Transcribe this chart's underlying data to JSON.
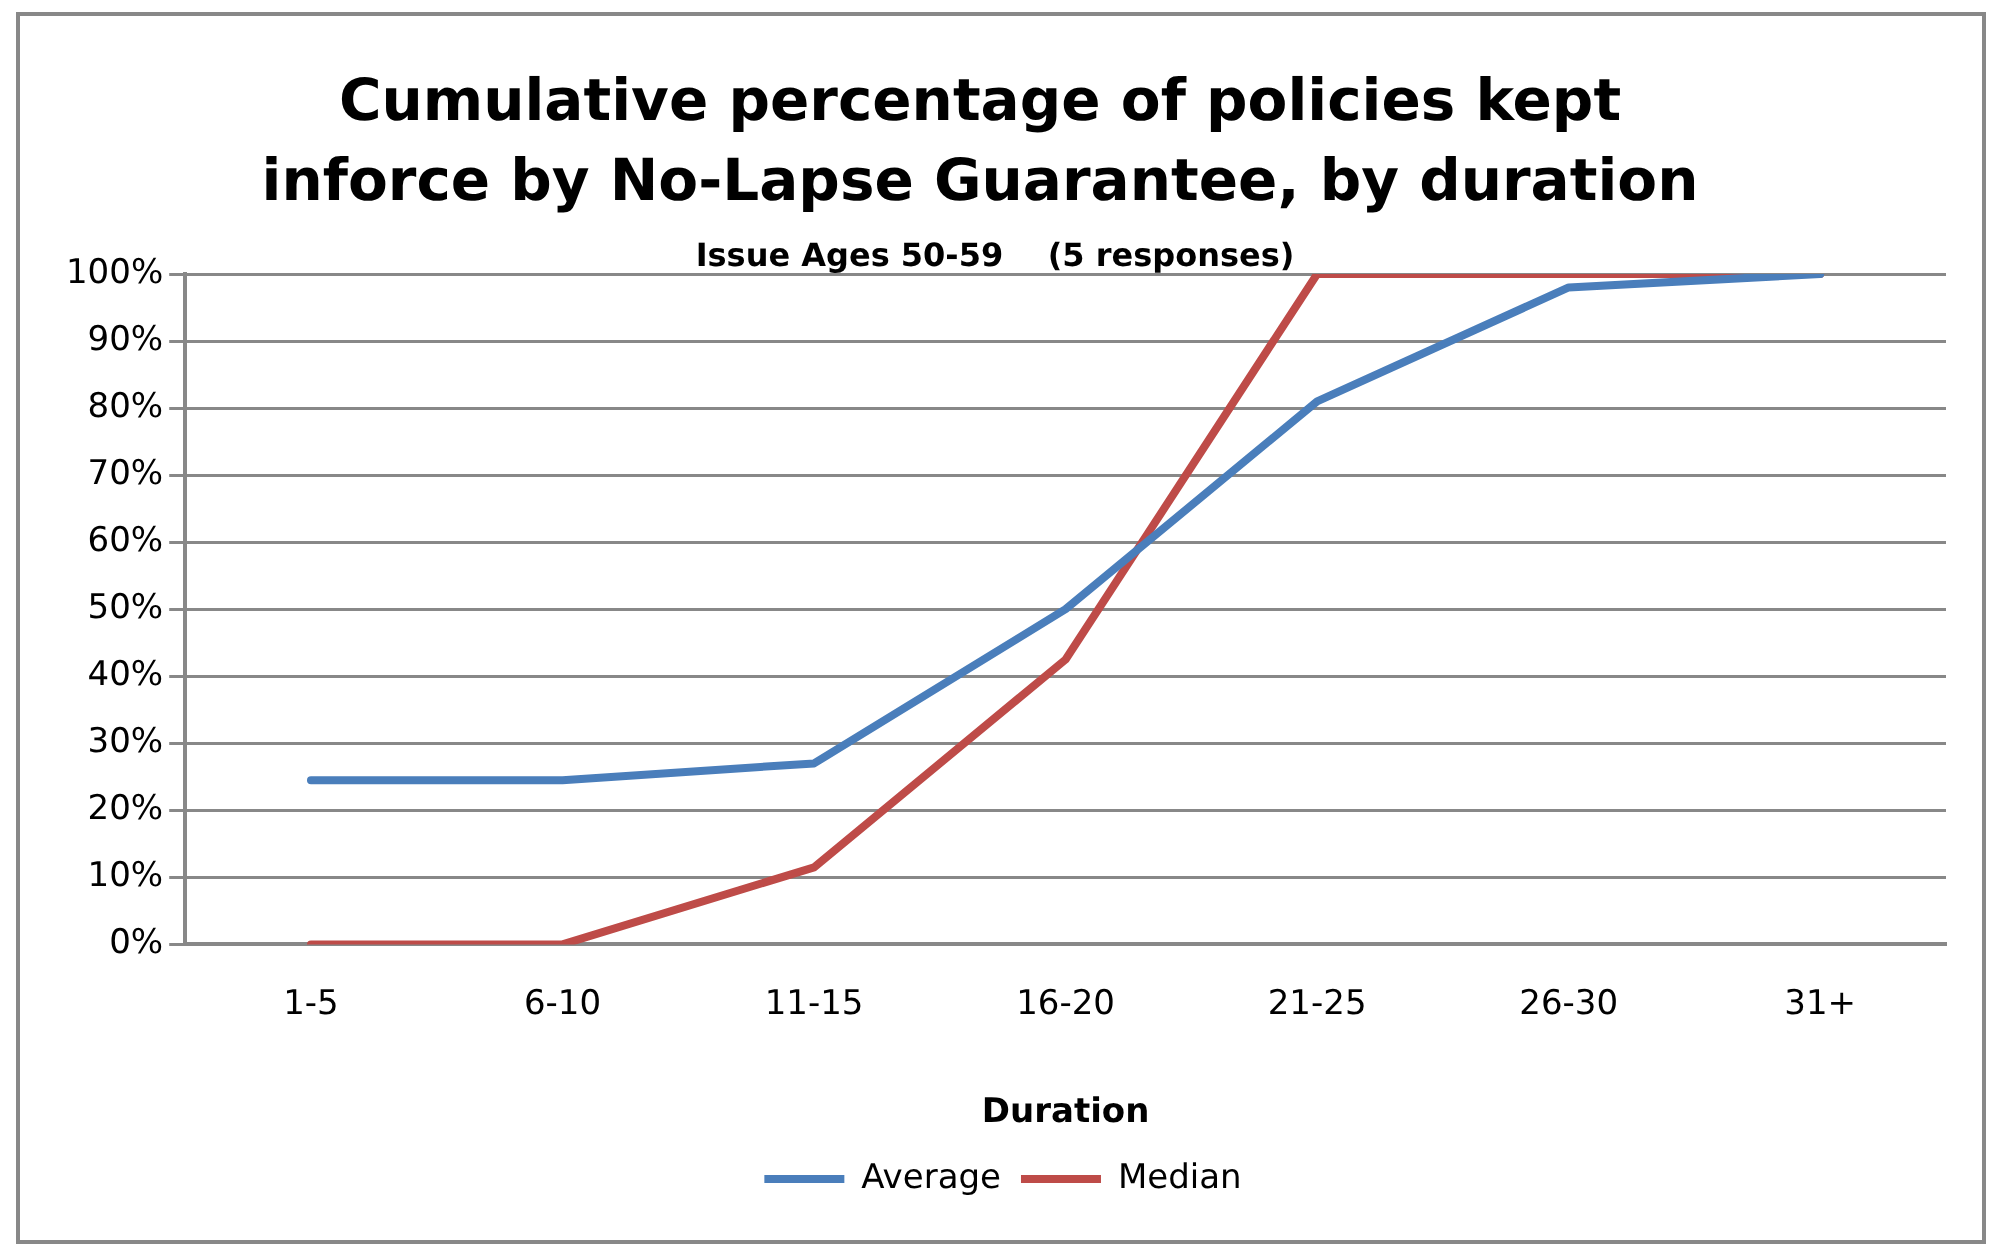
{
  "chart_data": {
    "type": "line",
    "title": "Cumulative percentage of policies kept inforce by No-Lapse Guarantee, by duration",
    "subtitle": "Issue Ages 50-59    (5 responses)",
    "xlabel": "Duration",
    "categories": [
      "1-5",
      "6-10",
      "11-15",
      "16-20",
      "21-25",
      "26-30",
      "31+"
    ],
    "series": [
      {
        "name": "Average",
        "color": "#4a7ebb",
        "values": [
          24.5,
          24.5,
          27,
          50,
          81,
          98,
          100
        ]
      },
      {
        "name": "Median",
        "color": "#be4b48",
        "values": [
          0,
          0,
          11.5,
          42.5,
          100,
          100,
          100
        ]
      }
    ],
    "ylim": [
      0,
      100
    ],
    "yticks": [
      {
        "value": 0,
        "label": "0%"
      },
      {
        "value": 10,
        "label": "10%"
      },
      {
        "value": 20,
        "label": "20%"
      },
      {
        "value": 30,
        "label": "30%"
      },
      {
        "value": 40,
        "label": "40%"
      },
      {
        "value": 50,
        "label": "50%"
      },
      {
        "value": 60,
        "label": "60%"
      },
      {
        "value": 70,
        "label": "70%"
      },
      {
        "value": 80,
        "label": "80%"
      },
      {
        "value": 90,
        "label": "90%"
      },
      {
        "value": 100,
        "label": "100%"
      }
    ],
    "grid": "y",
    "legend": "bottom",
    "marker": "none",
    "line_style": "solid"
  }
}
